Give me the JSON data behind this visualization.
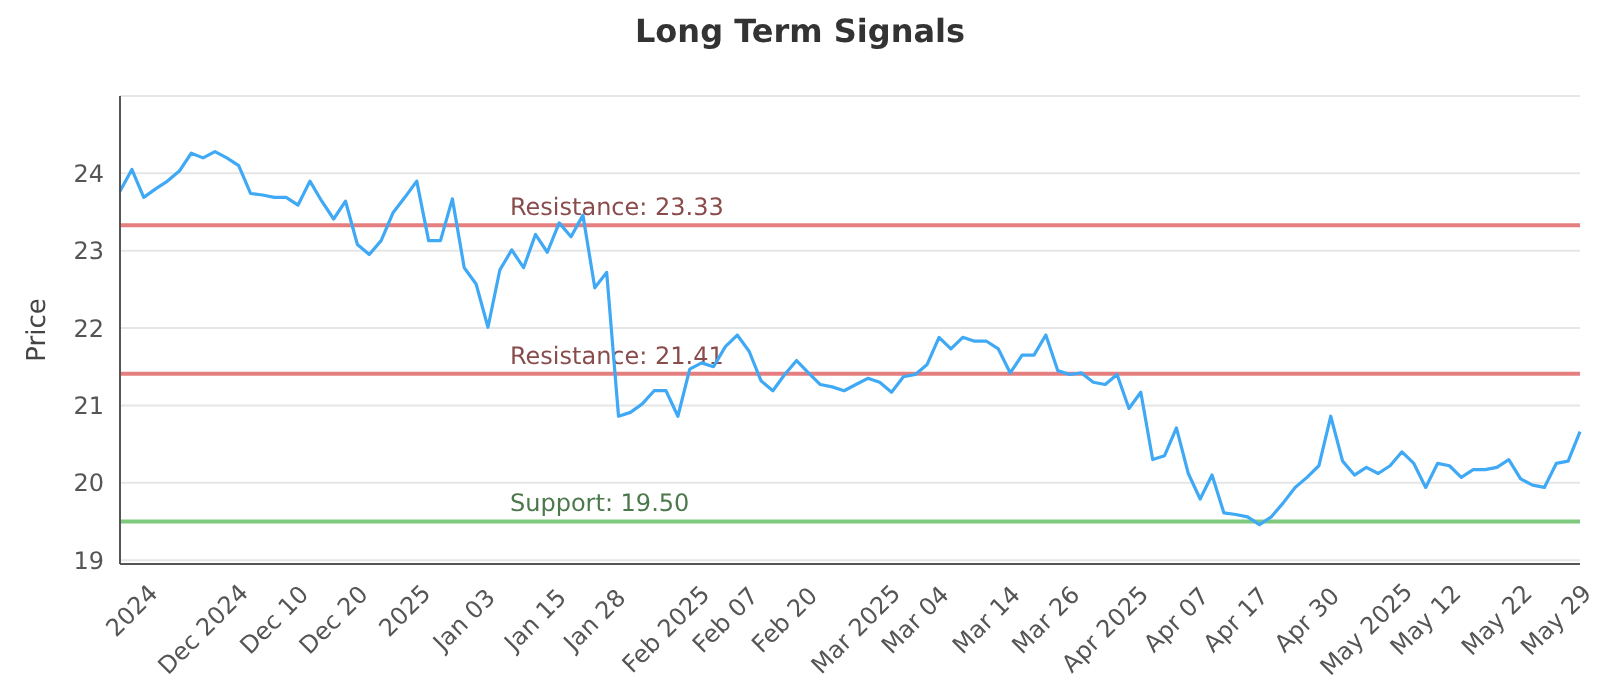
{
  "chart_data": {
    "type": "line",
    "title": "Long Term Signals",
    "ylabel": "Price",
    "categories": [
      null,
      "2024",
      null,
      null,
      null,
      null,
      null,
      "Dec 2024",
      null,
      null,
      null,
      null,
      null,
      "Dec 10",
      null,
      null,
      null,
      null,
      "Dec 20",
      null,
      null,
      null,
      null,
      null,
      "2025",
      null,
      null,
      null,
      null,
      "Jan 03",
      null,
      null,
      null,
      null,
      null,
      "Jan 15",
      null,
      null,
      null,
      null,
      "Jan 28",
      null,
      null,
      null,
      null,
      null,
      "Feb 2025",
      null,
      null,
      null,
      null,
      "Feb 07",
      null,
      null,
      null,
      null,
      "Feb 20",
      null,
      null,
      null,
      null,
      null,
      "Mar 2025",
      null,
      null,
      null,
      null,
      "Mar 04",
      null,
      null,
      null,
      null,
      null,
      "Mar 14",
      null,
      null,
      null,
      null,
      "Mar 26",
      null,
      null,
      null,
      null,
      "Apr 2025",
      null,
      null,
      null,
      null,
      null,
      "Apr 07",
      null,
      null,
      null,
      null,
      "Apr 17",
      null,
      null,
      null,
      null,
      null,
      "Apr 30",
      null,
      null,
      null,
      null,
      "May 2025",
      null,
      null,
      null,
      null,
      "May 12",
      null,
      null,
      null,
      null,
      null,
      "May 22",
      null,
      null,
      null,
      null,
      "May 29",
      null,
      null
    ],
    "series": [
      {
        "color": "#3fa9f5",
        "values": [
          23.77,
          24.05,
          23.69,
          23.8,
          23.9,
          24.03,
          24.26,
          24.2,
          24.28,
          24.2,
          24.1,
          23.74,
          23.72,
          23.69,
          23.69,
          23.59,
          23.9,
          23.64,
          23.41,
          23.64,
          23.08,
          22.95,
          23.13,
          23.49,
          23.69,
          23.9,
          23.13,
          23.13,
          23.67,
          22.78,
          22.57,
          22.01,
          22.75,
          23.01,
          22.78,
          23.21,
          22.98,
          23.36,
          23.18,
          23.46,
          22.52,
          22.72,
          20.86,
          20.91,
          21.02,
          21.19,
          21.19,
          20.86,
          21.47,
          21.55,
          21.5,
          21.76,
          21.91,
          21.7,
          21.32,
          21.19,
          21.4,
          21.58,
          21.42,
          21.27,
          21.24,
          21.19,
          21.27,
          21.35,
          21.3,
          21.17,
          21.37,
          21.4,
          21.53,
          21.88,
          21.73,
          21.88,
          21.83,
          21.83,
          21.73,
          21.42,
          21.65,
          21.65,
          21.91,
          21.45,
          21.4,
          21.42,
          21.3,
          21.27,
          21.4,
          20.96,
          21.17,
          20.3,
          20.35,
          20.71,
          20.12,
          19.79,
          20.1,
          19.61,
          19.59,
          19.56,
          19.46,
          19.56,
          19.74,
          19.94,
          20.07,
          20.22,
          20.86,
          20.28,
          20.1,
          20.2,
          20.12,
          20.22,
          20.4,
          20.25,
          19.94,
          20.25,
          20.22,
          20.07,
          20.17,
          20.17,
          20.2,
          20.3,
          20.05,
          19.97,
          19.94,
          20.25,
          20.28,
          20.66
        ]
      }
    ],
    "ylim": [
      18.95,
      25
    ],
    "yticks": [
      19,
      20,
      21,
      22,
      23,
      24
    ],
    "grid": "y",
    "marker": "none",
    "line_style": "solid",
    "ref_lines": [
      {
        "axis": "y",
        "value": 23.33,
        "label": "Resistance: 23.33",
        "color": "#e57f7f"
      },
      {
        "axis": "y",
        "value": 21.41,
        "label": "Resistance: 21.41",
        "color": "#e57f7f"
      },
      {
        "axis": "y",
        "value": 19.5,
        "label": "Support: 19.50",
        "color": "#7fc97f"
      }
    ]
  }
}
